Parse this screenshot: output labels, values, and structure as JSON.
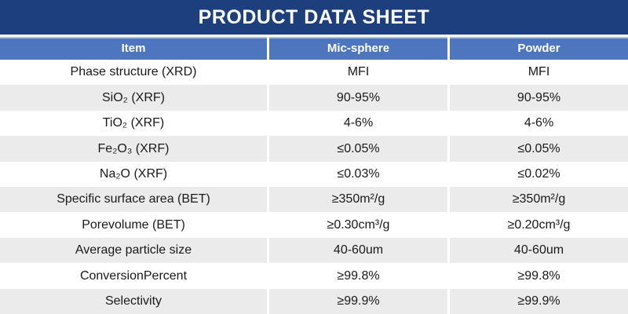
{
  "title": "PRODUCT DATA SHEET",
  "colors": {
    "banner-bg": "#1E3F7D",
    "header-bg": "#4D76BE",
    "header-border-top": "#A9BFE0",
    "row-alt-bg": "#EBEBEB",
    "body-text": "#1A1A1A"
  },
  "table": {
    "columns": [
      "Item",
      "Mic-sphere",
      "Powder"
    ],
    "rows": [
      {
        "item": "Phase structure (XRD)",
        "mic_sphere": "MFI",
        "powder": "MFI"
      },
      {
        "item": "SiO₂ (XRF)",
        "mic_sphere": "90-95%",
        "powder": "90-95%"
      },
      {
        "item": "TiO₂ (XRF)",
        "mic_sphere": "4-6%",
        "powder": "4-6%"
      },
      {
        "item": "Fe₂O₃ (XRF)",
        "mic_sphere": "≤0.05%",
        "powder": "≤0.05%"
      },
      {
        "item": "Na₂O (XRF)",
        "mic_sphere": "≤0.03%",
        "powder": "≤0.02%"
      },
      {
        "item": "Specific surface area (BET)",
        "mic_sphere": "≥350m²/g",
        "powder": "≥350m²/g"
      },
      {
        "item": "Porevolume (BET)",
        "mic_sphere": "≥0.30cm³/g",
        "powder": "≥0.20cm³/g"
      },
      {
        "item": "Average particle size",
        "mic_sphere": "40-60um",
        "powder": "40-60um"
      },
      {
        "item": "ConversionPercent",
        "mic_sphere": "≥99.8%",
        "powder": "≥99.8%"
      },
      {
        "item": "Selectivity",
        "mic_sphere": "≥99.9%",
        "powder": "≥99.9%"
      }
    ]
  }
}
